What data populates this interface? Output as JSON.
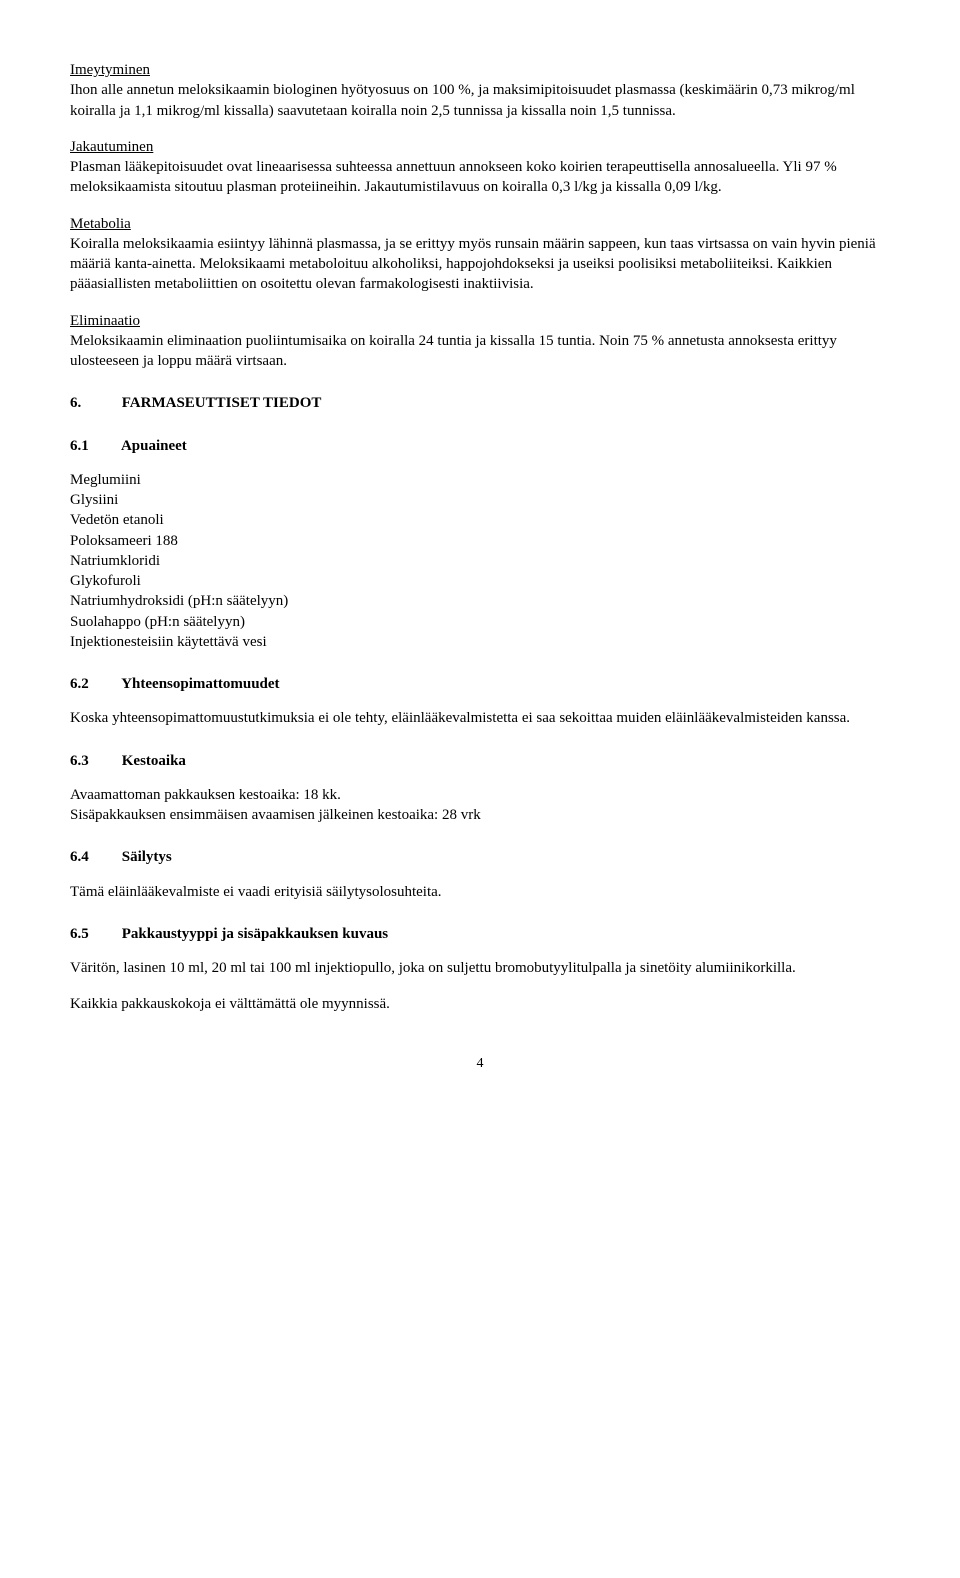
{
  "h_imeytyminen": "Imeytyminen",
  "p_imeytyminen": "Ihon alle annetun meloksikaamin biologinen hyötyosuus on 100 %, ja maksimipitoisuudet plasmassa (keskimäärin 0,73 mikrog/ml koiralla ja 1,1 mikrog/ml kissalla) saavutetaan koiralla noin 2,5 tunnissa ja kissalla noin 1,5 tunnissa.",
  "h_jakautuminen": "Jakautuminen",
  "p_jakautuminen": "Plasman lääkepitoisuudet ovat lineaarisessa suhteessa annettuun annokseen koko koirien terapeuttisella annosalueella. Yli 97 % meloksikaamista sitoutuu plasman proteiineihin. Jakautumistilavuus on koiralla 0,3 l/kg ja kissalla 0,09 l/kg.",
  "h_metabolia": "Metabolia",
  "p_metabolia": "Koiralla meloksikaamia esiintyy lähinnä plasmassa, ja se erittyy myös runsain määrin sappeen, kun taas virtsassa on vain hyvin pieniä määriä kanta-ainetta. Meloksikaami metaboloituu alkoholiksi, happojohdokseksi ja useiksi poolisiksi metaboliiteiksi. Kaikkien pääasiallisten metaboliittien on osoitettu olevan farmakologisesti inaktiivisia.",
  "h_eliminaatio": "Eliminaatio",
  "p_eliminaatio": "Meloksikaamin eliminaation puoliintumisaika on koiralla 24 tuntia ja kissalla 15 tuntia. Noin 75 % annetusta annoksesta erittyy ulosteeseen ja loppu määrä virtsaan.",
  "s6_num": "6.",
  "s6_title": "FARMASEUTTISET TIEDOT",
  "s61_num": "6.1",
  "s61_title": "Apuaineet",
  "apuaineet": [
    "Meglumiini",
    "Glysiini",
    "Vedetön etanoli",
    "Poloksameeri 188",
    "Natriumkloridi",
    "Glykofuroli",
    "Natriumhydroksidi (pH:n säätelyyn)",
    "Suolahappo (pH:n säätelyyn)",
    "Injektionesteisiin käytettävä vesi"
  ],
  "s62_num": "6.2",
  "s62_title": "Yhteensopimattomuudet",
  "p62": "Koska yhteensopimattomuustutkimuksia ei ole tehty, eläinlääkevalmistetta ei saa sekoittaa muiden eläinlääkevalmisteiden kanssa.",
  "s63_num": "6.3",
  "s63_title": "Kestoaika",
  "p63a": "Avaamattoman pakkauksen kestoaika: 18 kk.",
  "p63b": "Sisäpakkauksen ensimmäisen avaamisen jälkeinen kestoaika: 28 vrk",
  "s64_num": "6.4",
  "s64_title": "Säilytys",
  "p64": "Tämä eläinlääkevalmiste ei vaadi erityisiä säilytysolosuhteita.",
  "s65_num": "6.5",
  "s65_title": "Pakkaustyyppi ja sisäpakkauksen kuvaus",
  "p65a": "Väritön, lasinen 10 ml, 20 ml tai 100 ml injektiopullo, joka on suljettu bromobutyylitulpalla ja sinetöity alumiinikorkilla.",
  "p65b": "Kaikkia pakkauskokoja ei välttämättä ole myynnissä.",
  "page_number": "4"
}
